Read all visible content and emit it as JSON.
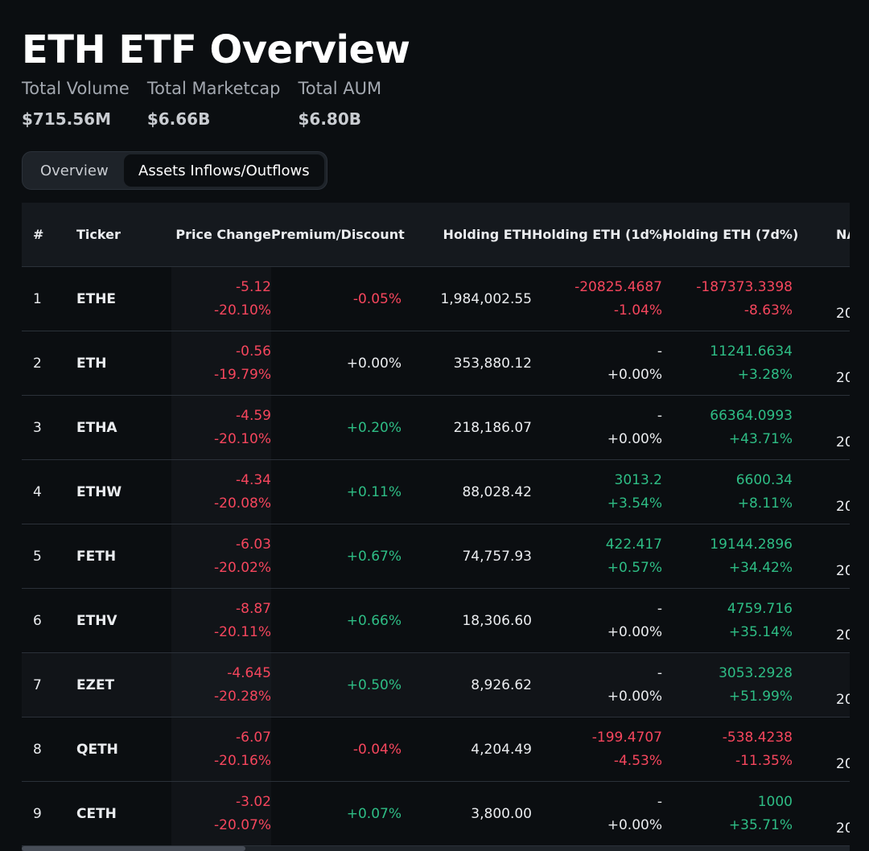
{
  "title": "ETH ETF Overview",
  "stats": [
    {
      "label": "Total Volume",
      "value": "$715.56M"
    },
    {
      "label": "Total Marketcap",
      "value": "$6.66B"
    },
    {
      "label": "Total AUM",
      "value": "$6.80B"
    }
  ],
  "tabs": [
    {
      "label": "Overview",
      "active": false
    },
    {
      "label": "Assets Inflows/Outflows",
      "active": true
    }
  ],
  "columns": [
    "#",
    "Ticker",
    "Price Change",
    "Premium/Discount",
    "Holding ETH",
    "Holding ETH (1d%)",
    "Holding ETH (7d%)",
    "NAV"
  ],
  "rows": [
    {
      "num": "1",
      "ticker": "ETHE",
      "price_abs": "-5.12",
      "price_pct": "-20.10%",
      "premium": "-0.05%",
      "holding": "1,984,002.55",
      "h1_abs": "-20825.4687",
      "h1_pct": "-1.04%",
      "h7_abs": "-187373.3398",
      "h7_pct": "-8.63%",
      "nav": "20"
    },
    {
      "num": "2",
      "ticker": "ETH",
      "price_abs": "-0.56",
      "price_pct": "-19.79%",
      "premium": "+0.00%",
      "holding": "353,880.12",
      "h1_abs": "-",
      "h1_pct": "+0.00%",
      "h7_abs": "11241.6634",
      "h7_pct": "+3.28%",
      "nav": "20"
    },
    {
      "num": "3",
      "ticker": "ETHA",
      "price_abs": "-4.59",
      "price_pct": "-20.10%",
      "premium": "+0.20%",
      "holding": "218,186.07",
      "h1_abs": "-",
      "h1_pct": "+0.00%",
      "h7_abs": "66364.0993",
      "h7_pct": "+43.71%",
      "nav": "20"
    },
    {
      "num": "4",
      "ticker": "ETHW",
      "price_abs": "-4.34",
      "price_pct": "-20.08%",
      "premium": "+0.11%",
      "holding": "88,028.42",
      "h1_abs": "3013.2",
      "h1_pct": "+3.54%",
      "h7_abs": "6600.34",
      "h7_pct": "+8.11%",
      "nav": "20"
    },
    {
      "num": "5",
      "ticker": "FETH",
      "price_abs": "-6.03",
      "price_pct": "-20.02%",
      "premium": "+0.67%",
      "holding": "74,757.93",
      "h1_abs": "422.417",
      "h1_pct": "+0.57%",
      "h7_abs": "19144.2896",
      "h7_pct": "+34.42%",
      "nav": "20"
    },
    {
      "num": "6",
      "ticker": "ETHV",
      "price_abs": "-8.87",
      "price_pct": "-20.11%",
      "premium": "+0.66%",
      "holding": "18,306.60",
      "h1_abs": "-",
      "h1_pct": "+0.00%",
      "h7_abs": "4759.716",
      "h7_pct": "+35.14%",
      "nav": "20"
    },
    {
      "num": "7",
      "ticker": "EZET",
      "price_abs": "-4.645",
      "price_pct": "-20.28%",
      "premium": "+0.50%",
      "holding": "8,926.62",
      "h1_abs": "-",
      "h1_pct": "+0.00%",
      "h7_abs": "3053.2928",
      "h7_pct": "+51.99%",
      "nav": "20"
    },
    {
      "num": "8",
      "ticker": "QETH",
      "price_abs": "-6.07",
      "price_pct": "-20.16%",
      "premium": "-0.04%",
      "holding": "4,204.49",
      "h1_abs": "-199.4707",
      "h1_pct": "-4.53%",
      "h7_abs": "-538.4238",
      "h7_pct": "-11.35%",
      "nav": "20"
    },
    {
      "num": "9",
      "ticker": "CETH",
      "price_abs": "-3.02",
      "price_pct": "-20.07%",
      "premium": "+0.07%",
      "holding": "3,800.00",
      "h1_abs": "-",
      "h1_pct": "+0.00%",
      "h7_abs": "1000",
      "h7_pct": "+35.71%",
      "nav": "20"
    }
  ],
  "colors": {
    "negative": "#f6465d",
    "positive": "#2ebd85",
    "neutral": "#eaecef",
    "background": "#0b0e11"
  }
}
